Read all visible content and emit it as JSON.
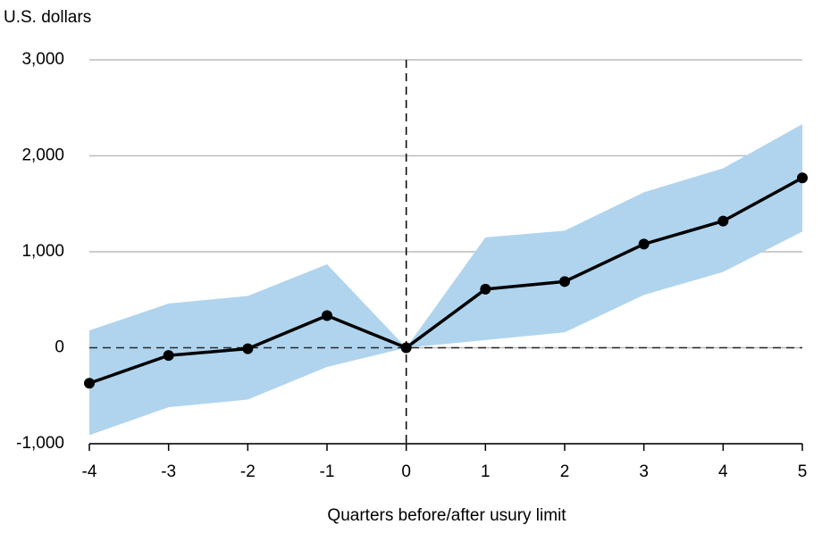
{
  "chart_data": {
    "type": "line",
    "y_label": "U.S. dollars",
    "x_label": "Quarters before/after usury limit",
    "x": [
      -4,
      -3,
      -2,
      -1,
      0,
      1,
      2,
      3,
      4,
      5
    ],
    "values": [
      -370,
      -80,
      -10,
      335,
      0,
      610,
      690,
      1080,
      1320,
      1770
    ],
    "color": "#000000",
    "band": {
      "upper": [
        180,
        460,
        540,
        870,
        0,
        1150,
        1220,
        1620,
        1870,
        2330
      ],
      "lower": [
        -910,
        -620,
        -540,
        -200,
        0,
        80,
        160,
        550,
        790,
        1210
      ],
      "color": "#b0d4ee"
    },
    "xlim": [
      -4,
      5
    ],
    "xticks": [
      -4,
      -3,
      -2,
      -1,
      0,
      1,
      2,
      3,
      4,
      5
    ],
    "ylim": [
      -1000,
      3000
    ],
    "yticks": [
      {
        "value": -1000,
        "label": "-1,000"
      },
      0,
      {
        "value": 1000,
        "label": "1,000"
      },
      {
        "value": 2000,
        "label": "2,000"
      },
      {
        "value": 3000,
        "label": "3,000"
      }
    ],
    "grid": true,
    "reference_x": 0,
    "reference_y": 0
  }
}
